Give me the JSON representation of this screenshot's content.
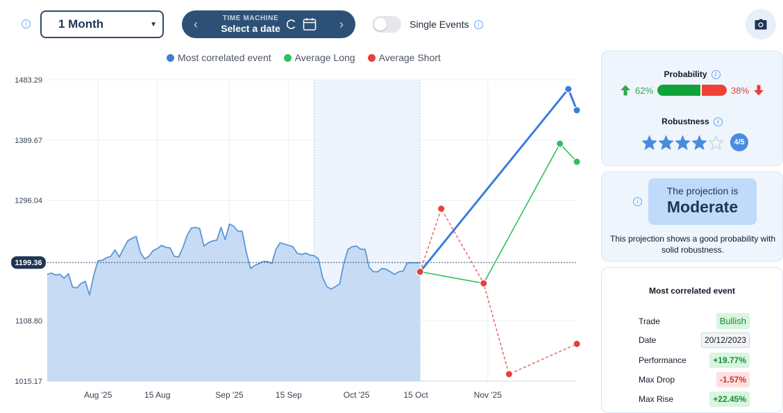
{
  "toolbar": {
    "period_value": "1 Month",
    "time_machine_label": "TIME MACHINE",
    "time_machine_value": "Select a date",
    "single_events_label": "Single Events",
    "single_events_on": false
  },
  "legend": [
    {
      "label": "Most correlated event",
      "color": "#3b7ddd"
    },
    {
      "label": "Average Long",
      "color": "#2fbf5b"
    },
    {
      "label": "Average Short",
      "color": "#e5403a"
    }
  ],
  "chart_data": {
    "type": "area",
    "y_ticks": [
      "1483.29",
      "1389.67",
      "1296.04",
      "1108.80",
      "1015.17"
    ],
    "ylim": [
      1015.17,
      1483.29
    ],
    "x_ticks": [
      "Aug '25",
      "15 Aug",
      "Sep '25",
      "15 Sep",
      "Oct '25",
      "15 Oct",
      "Nov '25"
    ],
    "current_price": 1199.36,
    "grid": true,
    "history": {
      "name": "Price",
      "x": [
        "2025-07-20",
        "2025-07-21",
        "2025-07-22",
        "2025-07-23",
        "2025-07-24",
        "2025-07-25",
        "2025-07-26",
        "2025-07-27",
        "2025-07-28",
        "2025-07-29",
        "2025-07-30",
        "2025-07-31",
        "2025-08-01",
        "2025-08-02",
        "2025-08-03",
        "2025-08-04",
        "2025-08-05",
        "2025-08-06",
        "2025-08-07",
        "2025-08-08",
        "2025-08-09",
        "2025-08-10",
        "2025-08-11",
        "2025-08-12",
        "2025-08-13",
        "2025-08-14",
        "2025-08-15",
        "2025-08-16",
        "2025-08-17",
        "2025-08-18",
        "2025-08-19",
        "2025-08-20",
        "2025-08-21",
        "2025-08-22",
        "2025-08-23",
        "2025-08-24",
        "2025-08-25",
        "2025-08-26",
        "2025-08-27",
        "2025-08-28",
        "2025-08-29",
        "2025-08-30",
        "2025-08-31",
        "2025-09-01",
        "2025-09-02",
        "2025-09-03",
        "2025-09-04",
        "2025-09-05",
        "2025-09-06",
        "2025-09-07",
        "2025-09-08",
        "2025-09-09",
        "2025-09-10",
        "2025-09-11",
        "2025-09-12",
        "2025-09-13",
        "2025-09-14",
        "2025-09-15",
        "2025-09-16",
        "2025-09-17",
        "2025-09-18",
        "2025-09-19",
        "2025-09-20",
        "2025-09-21",
        "2025-09-22",
        "2025-09-23",
        "2025-09-24",
        "2025-09-25",
        "2025-09-26",
        "2025-09-27",
        "2025-09-28",
        "2025-09-29",
        "2025-09-30",
        "2025-10-01",
        "2025-10-02",
        "2025-10-03",
        "2025-10-04",
        "2025-10-05",
        "2025-10-06",
        "2025-10-07",
        "2025-10-08",
        "2025-10-09",
        "2025-10-10",
        "2025-10-11",
        "2025-10-12",
        "2025-10-13",
        "2025-10-14",
        "2025-10-15",
        "2025-10-16"
      ],
      "y": [
        1181,
        1183,
        1180,
        1181,
        1175,
        1182,
        1161,
        1160,
        1167,
        1170,
        1149,
        1180,
        1202,
        1203,
        1207,
        1209,
        1219,
        1208,
        1221,
        1233,
        1237,
        1240,
        1215,
        1205,
        1209,
        1218,
        1221,
        1226,
        1223,
        1222,
        1209,
        1208,
        1222,
        1241,
        1253,
        1254,
        1252,
        1225,
        1230,
        1233,
        1234,
        1254,
        1235,
        1259,
        1256,
        1248,
        1248,
        1215,
        1190,
        1195,
        1198,
        1201,
        1201,
        1198,
        1220,
        1230,
        1228,
        1226,
        1224,
        1214,
        1212,
        1214,
        1211,
        1210,
        1205,
        1176,
        1162,
        1158,
        1162,
        1166,
        1198,
        1220,
        1224,
        1225,
        1220,
        1220,
        1192,
        1185,
        1185,
        1190,
        1189,
        1185,
        1181,
        1185,
        1186,
        1199,
        1199,
        1199,
        1199
      ]
    },
    "highlight_band": [
      "2025-09-21",
      "2025-10-16"
    ],
    "projections": [
      {
        "name": "Most correlated event",
        "color": "#3b7ddd",
        "style": "solid",
        "x": [
          "2025-10-16",
          "2025-11-20",
          "2025-11-22"
        ],
        "y": [
          1185,
          1469,
          1436
        ]
      },
      {
        "name": "Average Long",
        "color": "#2fbf5b",
        "style": "solid",
        "x": [
          "2025-10-16",
          "2025-10-31",
          "2025-11-18",
          "2025-11-22"
        ],
        "y": [
          1185,
          1167,
          1384,
          1356
        ]
      },
      {
        "name": "Average Short",
        "color": "#e5403a",
        "style": "dashed",
        "x": [
          "2025-10-16",
          "2025-10-21",
          "2025-10-31",
          "2025-11-06",
          "2025-11-22"
        ],
        "y": [
          1185,
          1283,
          1167,
          1026,
          1073
        ]
      }
    ]
  },
  "probability": {
    "title": "Probability",
    "long_pct": 62,
    "long_label": "62%",
    "short_pct": 38,
    "short_label": "38%",
    "long_color": "#10a33a",
    "short_color": "#ef4136"
  },
  "robustness": {
    "title": "Robustness",
    "stars": 4,
    "max": 5,
    "badge": "4/5"
  },
  "projection": {
    "label": "The projection is",
    "value": "Moderate",
    "description": "This projection shows a good probability with solid robustness."
  },
  "most_correlated": {
    "title": "Most correlated event",
    "rows": [
      {
        "label": "Trade",
        "value": "Bullish",
        "tone": "pos-strong"
      },
      {
        "label": "Date",
        "value": "20/12/2023",
        "tone": "neutral"
      },
      {
        "label": "Performance",
        "value": "+19.77%",
        "tone": "pos"
      },
      {
        "label": "Max Drop",
        "value": "-1.57%",
        "tone": "neg"
      },
      {
        "label": "Max Rise",
        "value": "+22.45%",
        "tone": "pos"
      }
    ]
  }
}
